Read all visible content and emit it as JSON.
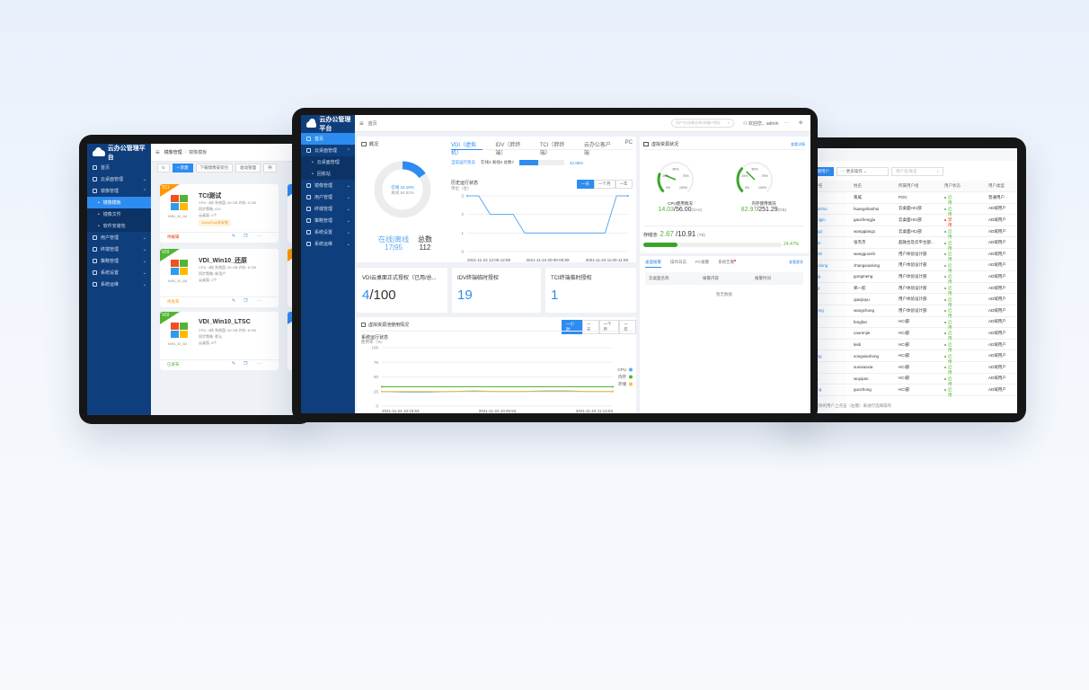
{
  "colors": {
    "sidebar": "#0f3e7c",
    "accent": "#2d8cf0",
    "success": "#52b435",
    "danger": "#ed4014",
    "warning": "#ff9900"
  },
  "left_tablet": {
    "logo": "云办公管理平台",
    "sidebar": [
      {
        "label": "首页",
        "icon": "home-icon"
      },
      {
        "label": "云桌面管理",
        "icon": "monitor-icon",
        "chevron": "⌄"
      },
      {
        "label": "镜像管理",
        "icon": "disc-icon",
        "chevron": "⌃",
        "expanded": true
      },
      {
        "label": "镜像模板",
        "sub": true,
        "active": true
      },
      {
        "label": "镜像文件",
        "sub": true
      },
      {
        "label": "软件安装包",
        "sub": true
      },
      {
        "label": "用户管理",
        "icon": "user-icon",
        "chevron": "⌄"
      },
      {
        "label": "终端管理",
        "icon": "terminal-icon",
        "chevron": "⌄"
      },
      {
        "label": "策略管理",
        "icon": "policy-icon",
        "chevron": "⌄"
      },
      {
        "label": "系统设置",
        "icon": "gear-icon",
        "chevron": "⌄"
      },
      {
        "label": "系统运维",
        "icon": "wrench-icon",
        "chevron": "⌄"
      }
    ],
    "breadcrumb": [
      "镜像管理",
      "镜像模板"
    ],
    "toolbar": {
      "new": "+ 新建",
      "download": "下载镜像安装包",
      "driver": "驱动管理",
      "more": "导"
    },
    "cards": [
      {
        "tag": "TCI",
        "tag_color": "#ff9900",
        "name": "TCI测试",
        "os": "WIN_10_64",
        "spec": "CPU: 4核  系统盘: 60 GB  内存: 4 GB",
        "policy": "同步策略: IDV",
        "desktops": "云桌面: 0个",
        "badge": "GuestTool未安装",
        "status": "待编辑",
        "status_color": "#ed4014"
      },
      {
        "tag": "VDI",
        "tag_color": "#52b435",
        "name": "VDI_Win10_还原",
        "os": "WIN_10_64",
        "spec": "CPU: 4核  系统盘: 60 GB  内存: 8 GB",
        "policy": "同步策略: 新用户",
        "desktops": "云桌面: 2个",
        "status": "待发布",
        "status_color": "#ff9900"
      },
      {
        "tag": "VDI",
        "tag_color": "#52b435",
        "name": "VDI_Win10_LTSC",
        "os": "WIN_10_64",
        "spec": "CPU: 4核  系统盘: 60 GB  内存: 8 GB",
        "policy": "同步策略: 默认",
        "desktops": "云桌面: 8个",
        "status": "已发布",
        "status_color": "#52b435"
      }
    ]
  },
  "center_tablet": {
    "logo": "云办公管理平台",
    "breadcrumb": "首页",
    "search_placeholder": "用户名/终端名称/终端IP地址",
    "welcome": "欢迎您，admin",
    "more": "···",
    "sidebar": [
      {
        "label": "首页",
        "icon": "home-icon",
        "active": true
      },
      {
        "label": "云桌面管理",
        "icon": "monitor-icon",
        "chevron": "⌃"
      },
      {
        "label": "云桌面管理",
        "sub": true
      },
      {
        "label": "回收站",
        "sub": true
      },
      {
        "label": "镜像管理",
        "icon": "disc-icon",
        "chevron": "⌄"
      },
      {
        "label": "用户管理",
        "icon": "user-icon",
        "chevron": "⌄"
      },
      {
        "label": "终端管理",
        "icon": "terminal-icon",
        "chevron": "⌄"
      },
      {
        "label": "策略管理",
        "icon": "policy-icon",
        "chevron": "⌄"
      },
      {
        "label": "系统设置",
        "icon": "gear-icon",
        "chevron": "⌄"
      },
      {
        "label": "系统运维",
        "icon": "wrench-icon",
        "chevron": "⌄"
      }
    ],
    "overview": {
      "title": "概况",
      "tabs": [
        "VDI（虚拟机）",
        "IDV（胖终端）",
        "TCI（胖终端）",
        "云办公客户端",
        "PC"
      ],
      "active_tab": 0,
      "donut": {
        "online_label": "在线 15.18%",
        "offline_label": "离线 84.82%",
        "online_pct": 15.18
      },
      "online_offline_label": "在线|离线",
      "online_offline_value": "17|95",
      "total_label": "总数",
      "total_value": "112",
      "current_label": "当前运行状态",
      "current_counts": "在线3  离线4  总数7",
      "current_pct": 42.86,
      "current_pct_label": "42.86%",
      "history_title": "历史运行状态",
      "history_unit": "单位（台）",
      "history_ranges": [
        "一天",
        "一个月",
        "一年"
      ],
      "history_chart": {
        "type": "line",
        "y_ticks": [
          0,
          1,
          2,
          3
        ],
        "ylim": [
          0,
          3
        ],
        "x_labels": [
          "2021-11-23 12:00-12:59",
          "2021-11-24 00:00-00:59",
          "2021-11-24 11:00-11:59"
        ],
        "values": [
          3,
          3,
          2,
          2,
          2,
          1,
          1,
          1,
          1,
          1,
          1,
          1,
          1,
          3,
          3
        ]
      }
    },
    "cards": [
      {
        "title": "VDI云桌面正式授权（已用/总...",
        "used": "4",
        "total": "/100"
      },
      {
        "title": "IDV终端临时授权",
        "value": "19"
      },
      {
        "title": "TCI终端临时授权",
        "value": "1"
      }
    ],
    "pool": {
      "title": "虚拟资源池使用情况",
      "ranges": [
        "一小时",
        "一天",
        "一个月",
        "一年"
      ],
      "chart_title": "系统运行状态",
      "unit": "使用率（%）",
      "chart": {
        "type": "line",
        "y_ticks": [
          0,
          25,
          50,
          75,
          100
        ],
        "ylim": [
          0,
          100
        ],
        "x_labels": [
          "2021-11-24 10:15:53",
          "2021-11-24 10:45:53",
          "2021-11-24 11:14:53"
        ],
        "series": [
          {
            "name": "CPU",
            "color": "#5aa9f0",
            "values": [
              25,
              24,
              24,
              25,
              26,
              25,
              25,
              26,
              26,
              25,
              25
            ]
          },
          {
            "name": "内存",
            "color": "#52b435",
            "values": [
              33,
              33,
              33,
              33,
              33,
              33,
              33,
              33,
              33,
              33,
              33
            ]
          },
          {
            "name": "存储",
            "color": "#f5c342",
            "values": [
              25,
              25,
              25,
              25,
              25,
              25,
              25,
              25,
              25,
              25,
              25
            ]
          }
        ]
      }
    },
    "resources": {
      "title": "虚拟资源状况",
      "detail_link": "查看详情",
      "gauge_ticks": [
        "0%",
        "25%",
        "50%",
        "75%",
        "100%"
      ],
      "cpu": {
        "label": "CPU使用情况",
        "used": "14.03",
        "total": "/56.00",
        "unit": "(GHz)",
        "pct": 25.05
      },
      "mem": {
        "label": "内存使用情况",
        "used": "82.97",
        "total": "/251.29",
        "unit": "(GB)",
        "pct": 33.02
      },
      "storage": {
        "label": "存储池:",
        "used": "2.67",
        "total": "/10.91",
        "unit": "(TB)",
        "pct": 24.47,
        "pct_label": "24.47%"
      }
    },
    "alarms": {
      "tabs": [
        "桌面报警",
        "操作日志",
        "PC报警",
        "系统告警"
      ],
      "more": "查看更多",
      "columns": [
        "云桌面名称",
        "报警内容",
        "报警时间"
      ],
      "empty": "暂无数据"
    }
  },
  "right_tablet": {
    "create_button": "创建用户",
    "more_ops": "··· 更多操作",
    "search_placeholder": "用户名/姓名",
    "columns": [
      "用户名",
      "姓名",
      "所属用户组",
      "用户状态",
      "用户类型"
    ],
    "rows": [
      [
        "wei",
        "蒋威",
        "POC",
        "启用",
        "普通用户"
      ],
      [
        "ghuanhui",
        "huangshanhui",
        "云桌面HCI部",
        "启用",
        "AD域用户"
      ],
      [
        "zhengjiu",
        "gaozhengjiu",
        "云桌面HCI部",
        "禁用",
        "AD域用户"
      ],
      [
        "qiang1",
        "wangqiang1",
        "云桌面HCI部",
        "启用",
        "AD域用户"
      ],
      [
        "gjiejie",
        "张杰杰",
        "超融合及云平台部...",
        "启用",
        "AD域用户"
      ],
      [
        "guoshi",
        "wangguoshi",
        "用户体验设计部",
        "启用",
        "AD域用户"
      ],
      [
        "gxiaolong",
        "zhangxiaolong",
        "用户体验设计部",
        "启用",
        "AD域用户"
      ],
      [
        "meng",
        "gongmeng",
        "用户体验设计部",
        "启用",
        "AD域用户"
      ],
      [
        "hang",
        "郑一航",
        "用户体验设计部",
        "启用",
        "AD域用户"
      ],
      [
        "nyu",
        "qianjinyu",
        "用户体验设计部",
        "启用",
        "AD域用户"
      ],
      [
        "gchong",
        "wangchong",
        "用户体验设计部",
        "启用",
        "AD域用户"
      ],
      [
        "fan",
        "fengfan",
        "HCI部",
        "启用",
        "AD域用户"
      ],
      [
        "njie",
        "caorenjie",
        "HCI部",
        "启用",
        "AD域用户"
      ],
      [
        "",
        "leidi",
        "HCI部",
        "启用",
        "AD域用户"
      ],
      [
        "ohong",
        "songxiaohong",
        "HCI部",
        "启用",
        "AD域用户"
      ],
      [
        "oxia",
        "sunxiaoxia",
        "HCI部",
        "启用",
        "AD域用户"
      ],
      [
        "ipan",
        "wuyipan",
        "HCI部",
        "启用",
        "AD域用户"
      ],
      [
        "zhong",
        "guozhong",
        "HCI部",
        "启用",
        "AD域用户"
      ]
    ],
    "footer": "请在你的用户上点击（右键）来进行选择操作"
  }
}
